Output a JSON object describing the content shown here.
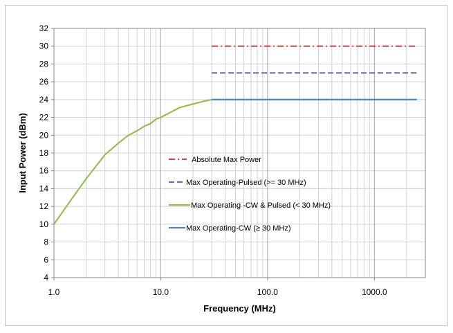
{
  "chart_data": {
    "type": "line",
    "title": "",
    "xlabel": "Frequency (MHz)",
    "ylabel": "Input Power (dBm)",
    "x_scale": "log",
    "xlim": [
      1,
      3000
    ],
    "ylim": [
      4,
      32
    ],
    "x_ticks": [
      1,
      10,
      100,
      1000
    ],
    "x_tick_labels": [
      "1.0",
      "10.0",
      "100.0",
      "1000.0"
    ],
    "y_ticks": [
      4,
      6,
      8,
      10,
      12,
      14,
      16,
      18,
      20,
      22,
      24,
      26,
      28,
      30,
      32
    ],
    "y_tick_labels": [
      "4",
      "6",
      "8",
      "10",
      "12",
      "14",
      "16",
      "18",
      "20",
      "22",
      "24",
      "26",
      "28",
      "30",
      "32"
    ],
    "grid": true,
    "legend_position": "center",
    "series": [
      {
        "name": "Absolute Max Power",
        "color": "#c0504d",
        "style": "dash-dot",
        "x": [
          30,
          2500
        ],
        "y": [
          30,
          30
        ]
      },
      {
        "name": "Max Operating-Pulsed (>= 30 MHz)",
        "color": "#8064a2",
        "style": "dashed",
        "x": [
          30,
          2500
        ],
        "y": [
          27,
          27
        ]
      },
      {
        "name": "Max Operating -CW & Pulsed (< 30 MHz)",
        "color": "#9bbb59",
        "style": "solid",
        "x": [
          1,
          1.5,
          2,
          3,
          4,
          5,
          6,
          7,
          8,
          9,
          10,
          15,
          20,
          25,
          30
        ],
        "y": [
          10,
          13,
          15.1,
          17.8,
          19.1,
          20,
          20.5,
          21,
          21.3,
          21.8,
          22,
          23.1,
          23.5,
          23.8,
          24
        ]
      },
      {
        "name": "Max Operating-CW (≥ 30 MHz)",
        "color": "#4f81bd",
        "style": "solid",
        "x": [
          30,
          2500
        ],
        "y": [
          24,
          24
        ]
      }
    ]
  }
}
